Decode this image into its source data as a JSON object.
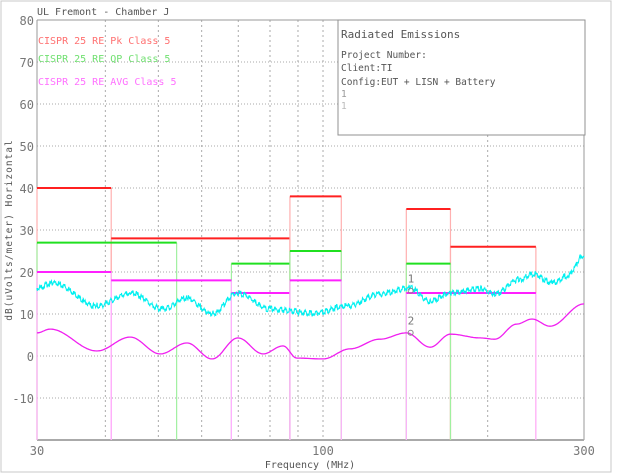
{
  "chart_data": {
    "type": "line",
    "title": "UL Fremont - Chamber J",
    "xlabel": "Frequency (MHz)",
    "ylabel": "dB(uVolts/meter) Horizontal",
    "xscale": "log",
    "xlim": [
      30,
      300
    ],
    "ylim": [
      -20,
      80
    ],
    "xticks": [
      30,
      100,
      300
    ],
    "yticks": [
      80,
      70,
      60,
      50,
      40,
      30,
      20,
      10,
      0,
      -10
    ],
    "grid": true,
    "info_box": {
      "title": "Radiated Emissions",
      "lines": [
        "Project Number:",
        "Client:TI",
        "Config:EUT + LISN + Battery",
        "1",
        "1"
      ]
    },
    "limits": [
      {
        "name": "CISPR 25 RE Pk Class 5",
        "color": "#ff2020",
        "segments": [
          [
            30,
            41,
            40
          ],
          [
            41,
            87,
            28
          ],
          [
            87,
            108,
            38
          ],
          [
            142,
            171,
            35
          ],
          [
            171,
            245,
            26
          ]
        ]
      },
      {
        "name": "CISPR 25 RE QP Class 5",
        "color": "#20e020",
        "segments": [
          [
            30,
            54,
            27
          ],
          [
            68,
            87,
            22
          ],
          [
            87,
            108,
            25
          ],
          [
            142,
            171,
            22
          ]
        ]
      },
      {
        "name": "CISPR 25 RE AVG Class 5",
        "color": "#ff20ff",
        "segments": [
          [
            30,
            41,
            20
          ],
          [
            41,
            68,
            18
          ],
          [
            68,
            87,
            15
          ],
          [
            87,
            108,
            18
          ],
          [
            142,
            245,
            15
          ]
        ]
      }
    ],
    "series": [
      {
        "color": "#00f0f0",
        "x": [
          30,
          32.1,
          38.6,
          44.4,
          51,
          56.4,
          62.7,
          69.6,
          80,
          95.9,
          110.6,
          127,
          144,
          157,
          171,
          194,
          206,
          229,
          242,
          263,
          279,
          300
        ],
        "y": [
          16.2,
          17.4,
          11.9,
          15,
          11.2,
          13.8,
          10,
          15,
          11.2,
          10.2,
          11.9,
          14.8,
          16.2,
          13,
          15,
          16,
          14.8,
          18.3,
          19.5,
          17.4,
          19,
          23.8
        ]
      },
      {
        "color": "#f020f0",
        "x": [
          30,
          31.7,
          38.6,
          44.4,
          50.4,
          56.4,
          62.7,
          69.9,
          77.7,
          84.5,
          89.6,
          100,
          112,
          127,
          142,
          157,
          171,
          194,
          206,
          226,
          241,
          260,
          300
        ],
        "y": [
          5.5,
          6.4,
          1.2,
          4.5,
          0.5,
          3.1,
          -0.7,
          4.3,
          0.5,
          2.4,
          -0.5,
          -0.7,
          1.7,
          4,
          5.5,
          2.1,
          5.2,
          4.3,
          4,
          7.6,
          8.8,
          7.1,
          12.4
        ]
      }
    ],
    "markers": [
      {
        "label": "1",
        "x": 144,
        "y": 16.5
      },
      {
        "label": "2",
        "x": 144,
        "y": 6.5
      }
    ]
  }
}
